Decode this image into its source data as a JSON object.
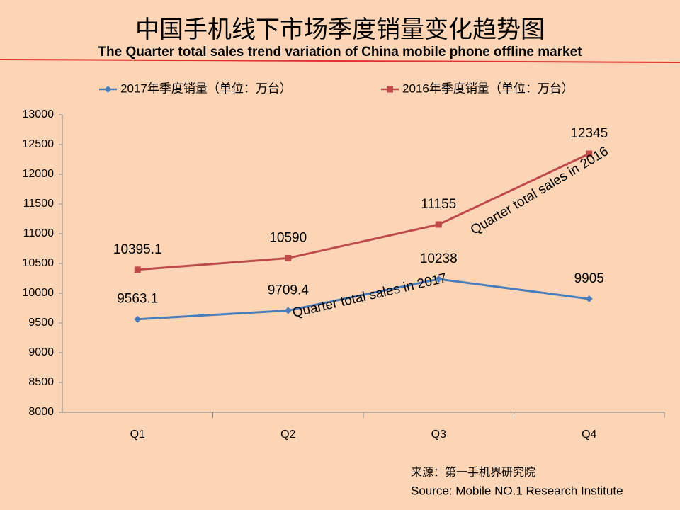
{
  "chart_data": {
    "type": "line",
    "title": "中国手机线下市场季度销量变化趋势图",
    "subtitle": "The Quarter total sales trend variation of China mobile phone offline market",
    "categories": [
      "Q1",
      "Q2",
      "Q3",
      "Q4"
    ],
    "series": [
      {
        "name": "2017年季度销量（单位：万台）",
        "color": "#4a7ebb",
        "marker": "diamond",
        "values": [
          9563.1,
          9709.4,
          10238,
          9905
        ]
      },
      {
        "name": "2016年季度销量（单位：万台）",
        "color": "#be4b48",
        "marker": "square",
        "values": [
          10395.1,
          10590,
          11155,
          12345
        ]
      }
    ],
    "ylim": [
      8000,
      13000
    ],
    "yticks": [
      8000,
      8500,
      9000,
      9500,
      10000,
      10500,
      11000,
      11500,
      12000,
      12500,
      13000
    ],
    "annotations": [
      "Quarter total sales in 2016",
      "Quarter total sales in 2017"
    ],
    "source": [
      "来源：第一手机界研究院",
      "Source: Mobile NO.1 Research Institute"
    ],
    "legend": "top"
  }
}
